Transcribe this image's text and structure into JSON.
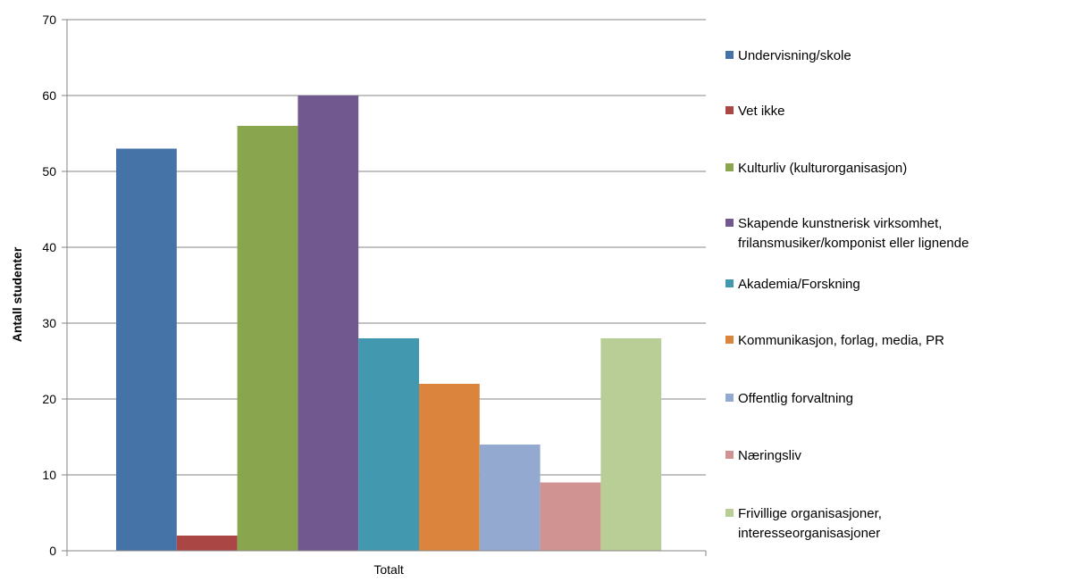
{
  "chart_data": {
    "type": "bar",
    "categories": [
      "Totalt"
    ],
    "ylabel": "Antall studenter",
    "xlabel": "",
    "ylim": [
      0,
      70
    ],
    "yticks": [
      0,
      10,
      20,
      30,
      40,
      50,
      60,
      70
    ],
    "grid": true,
    "legend_position": "right",
    "series": [
      {
        "name": "Undervisning/skole",
        "values": [
          53
        ],
        "color": "#4572A7"
      },
      {
        "name": "Vet ikke",
        "values": [
          2
        ],
        "color": "#AA4643"
      },
      {
        "name": "Kulturliv (kulturorganisasjon)",
        "values": [
          56
        ],
        "color": "#89A54E"
      },
      {
        "name": "Skapende kunstnerisk virksomhet, frilansmusiker/komponist eller lignende",
        "lines": [
          "Skapende kunstnerisk virksomhet,",
          "frilansmusiker/komponist eller lignende"
        ],
        "values": [
          60
        ],
        "color": "#71588F"
      },
      {
        "name": "Akademia/Forskning",
        "values": [
          28
        ],
        "color": "#4198AF"
      },
      {
        "name": "Kommunikasjon, forlag, media, PR",
        "values": [
          22
        ],
        "color": "#DB843D"
      },
      {
        "name": "Offentlig forvaltning",
        "values": [
          14
        ],
        "color": "#93A9CF"
      },
      {
        "name": "Næringsliv",
        "values": [
          9
        ],
        "color": "#D19392"
      },
      {
        "name": "Frivillige organisasjoner, interesseorganisasjoner",
        "lines": [
          "Frivillige organisasjoner,",
          "interesseorganisasjoner"
        ],
        "values": [
          28
        ],
        "color": "#B9CD96"
      }
    ]
  }
}
